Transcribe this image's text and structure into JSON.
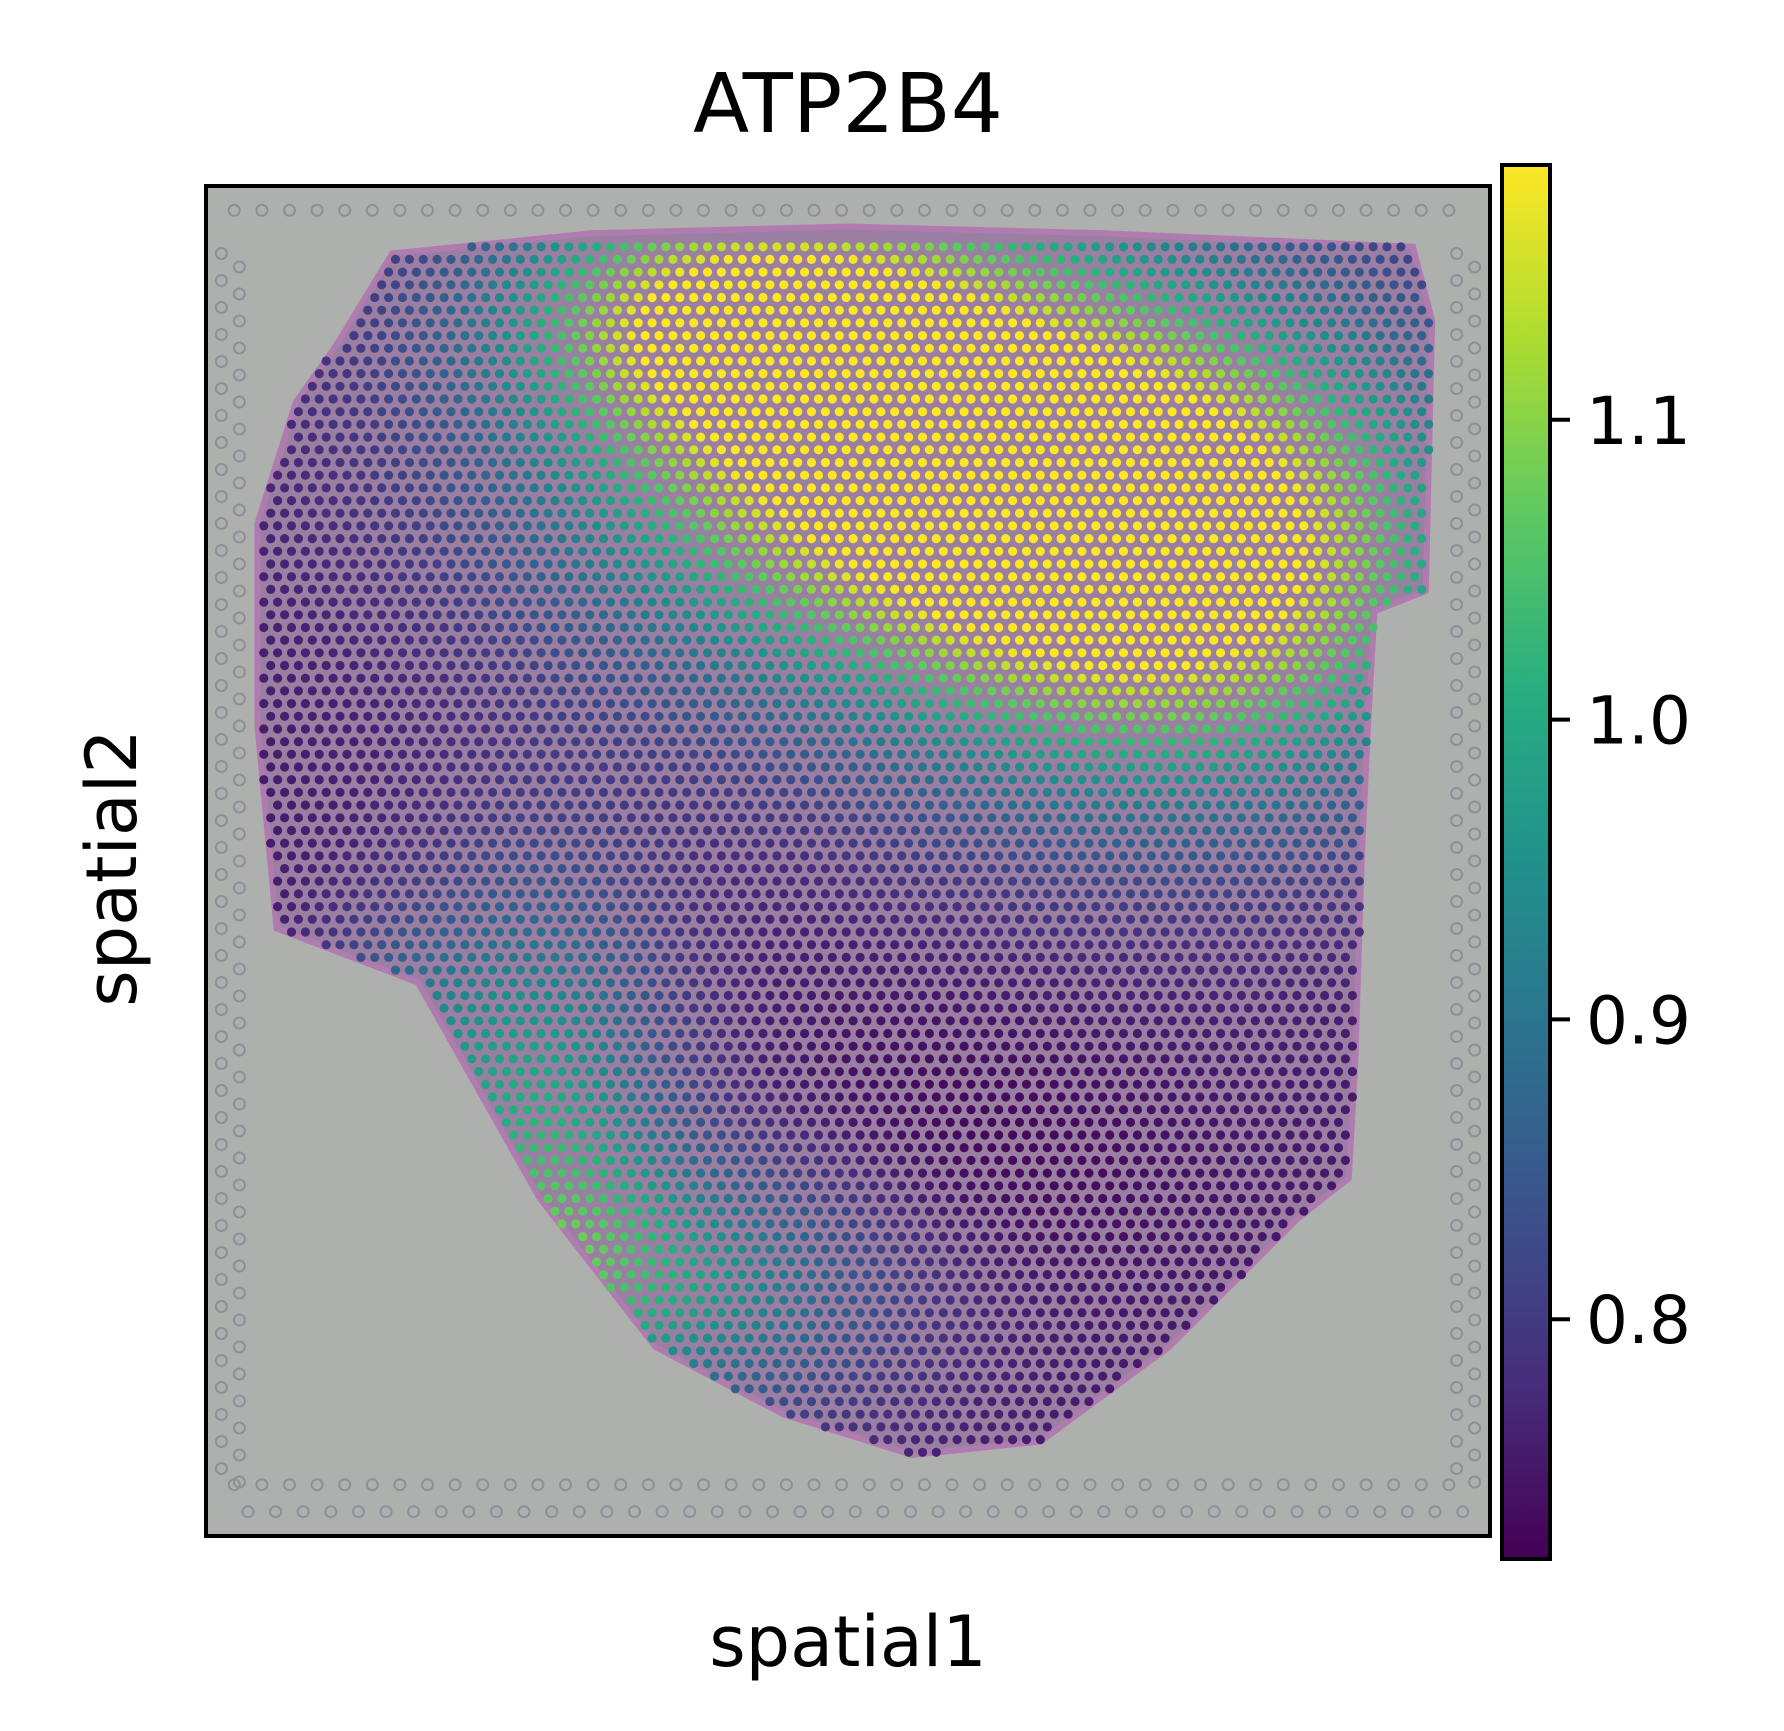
{
  "chart_data": {
    "type": "scatter",
    "title": "ATP2B4",
    "xlabel": "spatial1",
    "ylabel": "spatial2",
    "colorbar": {
      "colormap": "viridis",
      "range": [
        0.72,
        1.185
      ],
      "ticks": [
        0.8,
        0.9,
        1.0,
        1.1
      ],
      "tick_labels": [
        "0.8",
        "0.9",
        "1.0",
        "1.1"
      ]
    },
    "axes": {
      "xlim": [
        0,
        100
      ],
      "ylim": [
        100,
        0
      ],
      "show_ticks": false,
      "grid": false
    },
    "background": "tissue histology image (H&E) with capture-area fiducial spots",
    "spot_grid": {
      "x_range": [
        4.5,
        95.5
      ],
      "y_range": [
        4.5,
        95.5
      ],
      "spacing_x": 1.08,
      "spacing_y": 0.94
    },
    "tissue_outline": [
      [
        14.5,
        5.0
      ],
      [
        30.0,
        3.5
      ],
      [
        50.0,
        3.0
      ],
      [
        70.0,
        3.5
      ],
      [
        94.0,
        4.5
      ],
      [
        95.5,
        10.0
      ],
      [
        95.0,
        30.0
      ],
      [
        91.0,
        31.5
      ],
      [
        90.5,
        40.0
      ],
      [
        90.0,
        50.0
      ],
      [
        89.5,
        65.0
      ],
      [
        89.0,
        73.5
      ],
      [
        85.0,
        76.5
      ],
      [
        75.0,
        86.0
      ],
      [
        65.0,
        93.0
      ],
      [
        55.0,
        94.0
      ],
      [
        45.0,
        91.0
      ],
      [
        35.0,
        86.0
      ],
      [
        26.0,
        75.0
      ],
      [
        16.5,
        59.0
      ],
      [
        5.5,
        55.0
      ],
      [
        4.0,
        40.0
      ],
      [
        4.0,
        25.0
      ],
      [
        7.0,
        16.0
      ],
      [
        10.0,
        12.0
      ]
    ],
    "expression_field": {
      "base": 0.755,
      "components": [
        {
          "x": 52,
          "y": 18,
          "sx": 18,
          "sy": 12,
          "amp": 0.44
        },
        {
          "x": 76,
          "y": 28,
          "sx": 16,
          "sy": 12,
          "amp": 0.45
        },
        {
          "x": 40,
          "y": 9,
          "sx": 12,
          "sy": 6,
          "amp": 0.25
        },
        {
          "x": 26,
          "y": 68,
          "sx": 7,
          "sy": 12,
          "amp": 0.22
        },
        {
          "x": 35,
          "y": 81,
          "sx": 13,
          "sy": 7,
          "amp": 0.23
        },
        {
          "x": 15,
          "y": 63,
          "sx": 5,
          "sy": 6,
          "amp": 0.1
        },
        {
          "x": 55,
          "y": 73,
          "sx": 14,
          "sy": 8,
          "amp": -0.04
        }
      ]
    }
  }
}
